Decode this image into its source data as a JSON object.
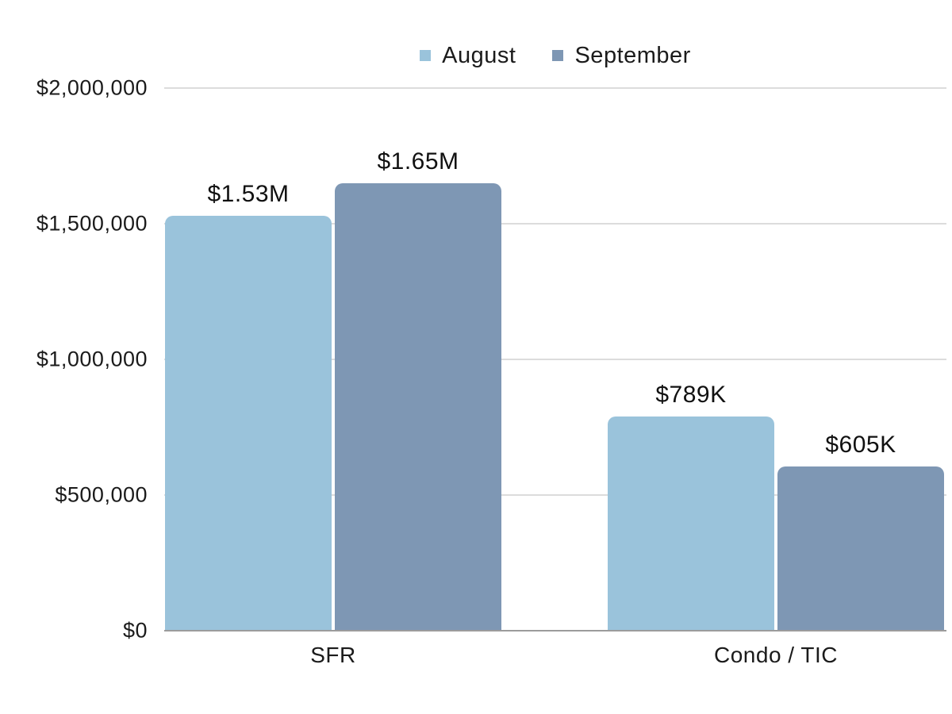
{
  "chart_data": {
    "type": "bar",
    "title": "",
    "categories": [
      "SFR",
      "Condo / TIC"
    ],
    "series": [
      {
        "name": "August",
        "color": "#9AC3DB",
        "values": [
          1530000,
          789000
        ],
        "value_labels": [
          "$1.53M",
          "$789K"
        ]
      },
      {
        "name": "September",
        "color": "#7E97B4",
        "values": [
          1650000,
          605000
        ],
        "value_labels": [
          "$1.65M",
          "$605K"
        ]
      }
    ],
    "ylim": [
      0,
      2000000
    ],
    "yticks": [
      {
        "value": 0,
        "label": "$0"
      },
      {
        "value": 500000,
        "label": "$500,000"
      },
      {
        "value": 1000000,
        "label": "$1,000,000"
      },
      {
        "value": 1500000,
        "label": "$1,500,000"
      },
      {
        "value": 2000000,
        "label": "$2,000,000"
      }
    ],
    "legend_position": "top",
    "grid": true,
    "colors": {
      "background": "#FFFFFF",
      "gridline": "#DCDCDC",
      "axis_baseline": "#9C9C9C",
      "text": "#1B1B1B"
    }
  }
}
